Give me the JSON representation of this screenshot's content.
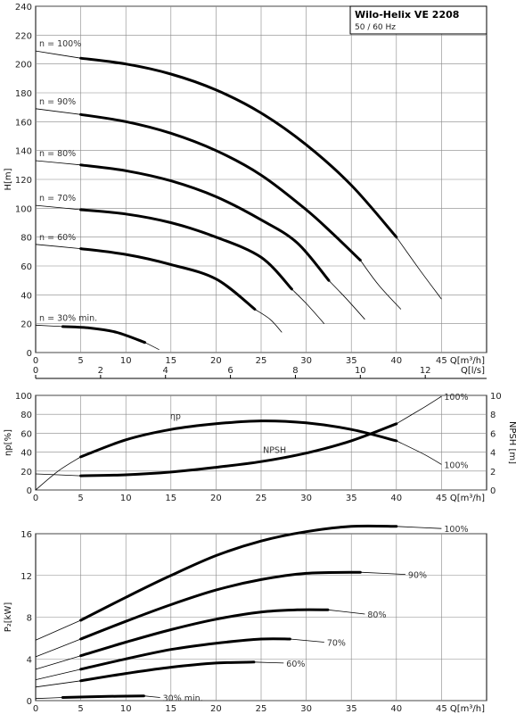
{
  "title": "Wilo-Helix VE 2208",
  "subtitle": "50 / 60 Hz",
  "chart_data": [
    {
      "id": "head",
      "type": "line",
      "ylabel": "H[m]",
      "xlabel": "Q[m³/h]",
      "xlabel2": "Q[l/s]",
      "xlim": [
        0,
        50
      ],
      "ylim": [
        0,
        240
      ],
      "x2lim": [
        0,
        13.889
      ],
      "xticks": [
        0,
        5,
        10,
        15,
        20,
        25,
        30,
        35,
        40,
        45
      ],
      "yticks": [
        0,
        20,
        40,
        60,
        80,
        100,
        120,
        140,
        160,
        180,
        200,
        220,
        240
      ],
      "x2ticks": [
        0,
        2,
        4,
        6,
        8,
        10,
        12
      ],
      "grid": true,
      "series": [
        {
          "name": "n = 100%",
          "thin_start": [
            [
              0,
              209
            ],
            [
              5,
              204
            ]
          ],
          "thick": [
            [
              5,
              204
            ],
            [
              10,
              200
            ],
            [
              15,
              193
            ],
            [
              20,
              182
            ],
            [
              25,
              166
            ],
            [
              30,
              144
            ],
            [
              35,
              116
            ],
            [
              40,
              80
            ]
          ],
          "thin_end": [
            [
              40,
              80
            ],
            [
              42.5,
              58
            ],
            [
              45,
              37
            ]
          ]
        },
        {
          "name": "n = 90%",
          "thin_start": [
            [
              0,
              169
            ],
            [
              5,
              165
            ]
          ],
          "thick": [
            [
              5,
              165
            ],
            [
              10,
              160
            ],
            [
              15,
              152
            ],
            [
              20,
              140
            ],
            [
              25,
              123
            ],
            [
              30,
              99
            ],
            [
              33,
              82
            ],
            [
              36,
              64
            ]
          ],
          "thin_end": [
            [
              36,
              64
            ],
            [
              38,
              47
            ],
            [
              40.5,
              30
            ]
          ]
        },
        {
          "name": "n = 80%",
          "thin_start": [
            [
              0,
              133
            ],
            [
              5,
              130
            ]
          ],
          "thick": [
            [
              5,
              130
            ],
            [
              10,
              126
            ],
            [
              15,
              119
            ],
            [
              20,
              108
            ],
            [
              25,
              92
            ],
            [
              29,
              76
            ],
            [
              32.5,
              50
            ]
          ],
          "thin_end": [
            [
              32.5,
              50
            ],
            [
              34.5,
              37
            ],
            [
              36.5,
              23
            ]
          ]
        },
        {
          "name": "n = 70%",
          "thin_start": [
            [
              0,
              102
            ],
            [
              5,
              99
            ]
          ],
          "thick": [
            [
              5,
              99
            ],
            [
              10,
              96
            ],
            [
              15,
              90
            ],
            [
              20,
              80
            ],
            [
              25,
              66
            ],
            [
              28.4,
              44
            ]
          ],
          "thin_end": [
            [
              28.4,
              44
            ],
            [
              30,
              34
            ],
            [
              32,
              20
            ]
          ]
        },
        {
          "name": "n = 60%",
          "thin_start": [
            [
              0,
              75
            ],
            [
              5,
              72
            ]
          ],
          "thick": [
            [
              5,
              72
            ],
            [
              10,
              68
            ],
            [
              15,
              61
            ],
            [
              20,
              51
            ],
            [
              24.3,
              30
            ]
          ],
          "thin_end": [
            [
              24.3,
              30
            ],
            [
              26,
              23
            ],
            [
              27.3,
              14
            ]
          ]
        },
        {
          "name": "n = 30% min.",
          "thin_start": [
            [
              0,
              19
            ],
            [
              3,
              18
            ]
          ],
          "thick": [
            [
              3,
              18
            ],
            [
              6,
              17
            ],
            [
              9,
              14
            ],
            [
              12.1,
              7
            ]
          ],
          "thin_end": [
            [
              12.1,
              7
            ],
            [
              13.7,
              2
            ]
          ]
        }
      ]
    },
    {
      "id": "efficiency",
      "type": "line",
      "ylabel": "ηp[%]",
      "ylabel_right": "NPSH [m]",
      "xlabel": "Q[m³/h]",
      "xlim": [
        0,
        50
      ],
      "ylim": [
        0,
        100
      ],
      "y2lim": [
        0,
        10
      ],
      "xticks": [
        0,
        5,
        10,
        15,
        20,
        25,
        30,
        35,
        40,
        45
      ],
      "yticks": [
        0,
        20,
        40,
        60,
        80,
        100
      ],
      "y2ticks": [
        0,
        2,
        4,
        6,
        8,
        10
      ],
      "series": [
        {
          "name": "ηp",
          "label": "ηp",
          "end_label": "100%",
          "thin_start": [
            [
              0,
              0
            ],
            [
              2.5,
              20
            ],
            [
              5,
              35
            ]
          ],
          "thick": [
            [
              5,
              35
            ],
            [
              10,
              53
            ],
            [
              15,
              64
            ],
            [
              20,
              70
            ],
            [
              25,
              73
            ],
            [
              30,
              71
            ],
            [
              35,
              64
            ],
            [
              40,
              52
            ]
          ],
          "thin_end": [
            [
              40,
              52
            ],
            [
              43,
              38
            ],
            [
              45,
              27
            ]
          ]
        },
        {
          "name": "NPSH",
          "label": "NPSH",
          "end_label": "100%",
          "unit": "m",
          "thin_start": [
            [
              0,
              1.7
            ],
            [
              5,
              1.5
            ]
          ],
          "thick": [
            [
              5,
              1.5
            ],
            [
              10,
              1.6
            ],
            [
              15,
              1.9
            ],
            [
              20,
              2.4
            ],
            [
              25,
              3.0
            ],
            [
              30,
              3.9
            ],
            [
              35,
              5.2
            ],
            [
              40,
              7.0
            ]
          ],
          "thin_end": [
            [
              40,
              7.0
            ],
            [
              43,
              8.7
            ],
            [
              45,
              9.9
            ]
          ]
        }
      ]
    },
    {
      "id": "power",
      "type": "line",
      "ylabel": "P₂[kW]",
      "xlabel": "Q[m³/h]",
      "xlim": [
        0,
        50
      ],
      "ylim": [
        0,
        16
      ],
      "xticks": [
        0,
        5,
        10,
        15,
        20,
        25,
        30,
        35,
        40,
        45
      ],
      "yticks": [
        0,
        4,
        8,
        12,
        16
      ],
      "series": [
        {
          "name": "100%",
          "thin_start": [
            [
              0,
              5.8
            ],
            [
              5,
              7.7
            ]
          ],
          "thick": [
            [
              5,
              7.7
            ],
            [
              10,
              9.9
            ],
            [
              15,
              12.0
            ],
            [
              20,
              13.9
            ],
            [
              25,
              15.3
            ],
            [
              30,
              16.2
            ],
            [
              35,
              16.7
            ],
            [
              40,
              16.7
            ]
          ],
          "thin_end": [
            [
              40,
              16.7
            ],
            [
              45,
              16.5
            ]
          ]
        },
        {
          "name": "90%",
          "thin_start": [
            [
              0,
              4.2
            ],
            [
              5,
              5.9
            ]
          ],
          "thick": [
            [
              5,
              5.9
            ],
            [
              10,
              7.6
            ],
            [
              15,
              9.2
            ],
            [
              20,
              10.6
            ],
            [
              25,
              11.6
            ],
            [
              30,
              12.2
            ],
            [
              36,
              12.3
            ]
          ],
          "thin_end": [
            [
              36,
              12.3
            ],
            [
              41,
              12.1
            ]
          ]
        },
        {
          "name": "80%",
          "thin_start": [
            [
              0,
              3.0
            ],
            [
              5,
              4.3
            ]
          ],
          "thick": [
            [
              5,
              4.3
            ],
            [
              10,
              5.6
            ],
            [
              15,
              6.8
            ],
            [
              20,
              7.8
            ],
            [
              25,
              8.5
            ],
            [
              29,
              8.7
            ],
            [
              32.4,
              8.7
            ]
          ],
          "thin_end": [
            [
              32.4,
              8.7
            ],
            [
              36.5,
              8.3
            ]
          ]
        },
        {
          "name": "70%",
          "thin_start": [
            [
              0,
              2.0
            ],
            [
              5,
              3.0
            ]
          ],
          "thick": [
            [
              5,
              3.0
            ],
            [
              10,
              4.0
            ],
            [
              15,
              4.9
            ],
            [
              20,
              5.5
            ],
            [
              25,
              5.9
            ],
            [
              28.2,
              5.9
            ]
          ],
          "thin_end": [
            [
              28.2,
              5.9
            ],
            [
              32,
              5.6
            ]
          ]
        },
        {
          "name": "60%",
          "thin_start": [
            [
              0,
              1.3
            ],
            [
              5,
              1.9
            ]
          ],
          "thick": [
            [
              5,
              1.9
            ],
            [
              10,
              2.6
            ],
            [
              15,
              3.2
            ],
            [
              20,
              3.6
            ],
            [
              24.2,
              3.7
            ]
          ],
          "thin_end": [
            [
              24.2,
              3.7
            ],
            [
              27.5,
              3.6
            ]
          ]
        },
        {
          "name": "30% min.",
          "thin_start": [
            [
              0,
              0.2
            ],
            [
              3,
              0.3
            ]
          ],
          "thick": [
            [
              3,
              0.3
            ],
            [
              8,
              0.4
            ],
            [
              12,
              0.45
            ]
          ],
          "thin_end": [
            [
              12,
              0.45
            ],
            [
              13.8,
              0.3
            ]
          ]
        }
      ]
    }
  ]
}
